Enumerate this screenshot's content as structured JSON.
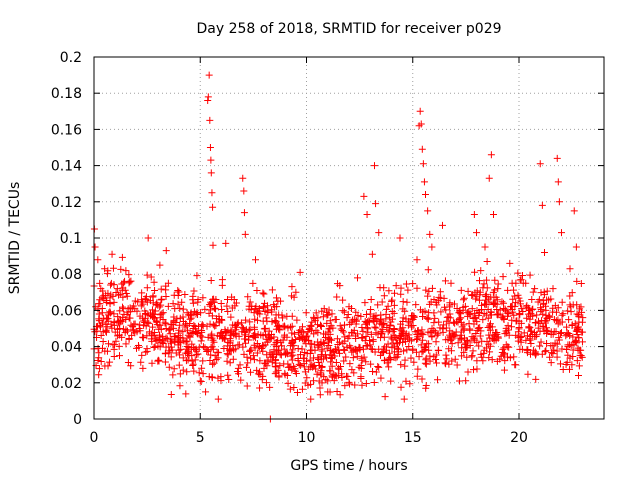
{
  "chart_data": {
    "type": "scatter",
    "title": "Day 258 of 2018, SRMTID for receiver p029",
    "xlabel": "GPS time / hours",
    "ylabel": "SRMTID / TECUs",
    "xlim": [
      0,
      24
    ],
    "ylim": [
      0,
      0.2
    ],
    "x_ticks": [
      0,
      5,
      10,
      15,
      20
    ],
    "x_tick_labels": [
      "0",
      "5",
      "10",
      "15",
      "20"
    ],
    "y_ticks": [
      0,
      0.02,
      0.04,
      0.06,
      0.08,
      0.1,
      0.12,
      0.14,
      0.16,
      0.18,
      0.2
    ],
    "y_tick_labels": [
      "0",
      "0.02",
      "0.04",
      "0.06",
      "0.08",
      "0.1",
      "0.12",
      "0.14",
      "0.16",
      "0.18",
      "0.2"
    ],
    "grid": true,
    "marker": "+",
    "color": "#ff0000",
    "data_x_end": 23.0,
    "series": [
      {
        "name": "SRMTID",
        "points": [
          [
            0.02,
            0.105
          ],
          [
            0.05,
            0.095
          ],
          [
            0.08,
            0.062
          ],
          [
            0.12,
            0.045
          ],
          [
            0.18,
            0.088
          ],
          [
            0.25,
            0.058
          ],
          [
            0.32,
            0.072
          ],
          [
            0.4,
            0.039
          ],
          [
            0.5,
            0.083
          ],
          [
            0.62,
            0.051
          ],
          [
            0.75,
            0.064
          ],
          [
            0.85,
            0.091
          ],
          [
            1.0,
            0.048
          ],
          [
            1.1,
            0.072
          ],
          [
            1.2,
            0.035
          ],
          [
            1.35,
            0.056
          ],
          [
            1.5,
            0.082
          ],
          [
            1.65,
            0.044
          ],
          [
            1.8,
            0.061
          ],
          [
            2.0,
            0.039
          ],
          [
            2.15,
            0.052
          ],
          [
            2.3,
            0.028
          ],
          [
            2.45,
            0.066
          ],
          [
            2.55,
            0.1
          ],
          [
            2.7,
            0.047
          ],
          [
            2.85,
            0.071
          ],
          [
            3.0,
            0.032
          ],
          [
            3.1,
            0.085
          ],
          [
            3.25,
            0.055
          ],
          [
            3.4,
            0.093
          ],
          [
            3.5,
            0.075
          ],
          [
            3.6,
            0.043
          ],
          [
            3.8,
            0.061
          ],
          [
            4.0,
            0.038
          ],
          [
            4.2,
            0.027
          ],
          [
            4.4,
            0.049
          ],
          [
            4.6,
            0.035
          ],
          [
            4.8,
            0.058
          ],
          [
            5.0,
            0.021
          ],
          [
            5.15,
            0.04
          ],
          [
            5.25,
            0.015
          ],
          [
            5.35,
            0.176
          ],
          [
            5.38,
            0.178
          ],
          [
            5.42,
            0.19
          ],
          [
            5.45,
            0.165
          ],
          [
            5.48,
            0.15
          ],
          [
            5.5,
            0.143
          ],
          [
            5.52,
            0.136
          ],
          [
            5.55,
            0.125
          ],
          [
            5.58,
            0.117
          ],
          [
            5.6,
            0.096
          ],
          [
            5.7,
            0.035
          ],
          [
            5.85,
            0.011
          ],
          [
            6.0,
            0.055
          ],
          [
            6.2,
            0.097
          ],
          [
            6.4,
            0.042
          ],
          [
            6.6,
            0.066
          ],
          [
            6.8,
            0.025
          ],
          [
            7.0,
            0.133
          ],
          [
            7.05,
            0.126
          ],
          [
            7.08,
            0.114
          ],
          [
            7.12,
            0.102
          ],
          [
            7.3,
            0.049
          ],
          [
            7.5,
            0.035
          ],
          [
            7.6,
            0.088
          ],
          [
            7.8,
            0.058
          ],
          [
            8.0,
            0.028
          ],
          [
            8.2,
            0.046
          ],
          [
            8.3,
            0.0
          ],
          [
            8.5,
            0.062
          ],
          [
            8.7,
            0.038
          ],
          [
            8.9,
            0.051
          ],
          [
            9.1,
            0.024
          ],
          [
            9.3,
            0.042
          ],
          [
            9.5,
            0.07
          ],
          [
            9.7,
            0.081
          ],
          [
            9.8,
            0.045
          ],
          [
            10.0,
            0.032
          ],
          [
            10.2,
            0.011
          ],
          [
            10.4,
            0.038
          ],
          [
            10.6,
            0.021
          ],
          [
            10.8,
            0.047
          ],
          [
            11.0,
            0.015
          ],
          [
            11.2,
            0.035
          ],
          [
            11.4,
            0.055
          ],
          [
            11.6,
            0.029
          ],
          [
            11.8,
            0.043
          ],
          [
            12.0,
            0.062
          ],
          [
            12.2,
            0.038
          ],
          [
            12.4,
            0.078
          ],
          [
            12.6,
            0.045
          ],
          [
            12.7,
            0.123
          ],
          [
            12.85,
            0.113
          ],
          [
            13.0,
            0.058
          ],
          [
            13.1,
            0.091
          ],
          [
            13.2,
            0.14
          ],
          [
            13.25,
            0.119
          ],
          [
            13.4,
            0.103
          ],
          [
            13.6,
            0.052
          ],
          [
            13.8,
            0.031
          ],
          [
            14.0,
            0.065
          ],
          [
            14.2,
            0.045
          ],
          [
            14.4,
            0.1
          ],
          [
            14.6,
            0.011
          ],
          [
            14.8,
            0.054
          ],
          [
            15.0,
            0.038
          ],
          [
            15.2,
            0.088
          ],
          [
            15.3,
            0.162
          ],
          [
            15.35,
            0.17
          ],
          [
            15.4,
            0.163
          ],
          [
            15.45,
            0.149
          ],
          [
            15.5,
            0.141
          ],
          [
            15.55,
            0.131
          ],
          [
            15.6,
            0.124
          ],
          [
            15.7,
            0.115
          ],
          [
            15.8,
            0.102
          ],
          [
            15.9,
            0.095
          ],
          [
            16.0,
            0.066
          ],
          [
            16.2,
            0.038
          ],
          [
            16.4,
            0.107
          ],
          [
            16.6,
            0.054
          ],
          [
            16.8,
            0.075
          ],
          [
            17.0,
            0.033
          ],
          [
            17.2,
            0.021
          ],
          [
            17.4,
            0.049
          ],
          [
            17.6,
            0.026
          ],
          [
            17.8,
            0.061
          ],
          [
            17.9,
            0.113
          ],
          [
            18.0,
            0.103
          ],
          [
            18.2,
            0.082
          ],
          [
            18.4,
            0.095
          ],
          [
            18.5,
            0.087
          ],
          [
            18.6,
            0.133
          ],
          [
            18.7,
            0.146
          ],
          [
            18.8,
            0.113
          ],
          [
            19.0,
            0.072
          ],
          [
            19.2,
            0.056
          ],
          [
            19.4,
            0.041
          ],
          [
            19.6,
            0.062
          ],
          [
            19.8,
            0.03
          ],
          [
            20.0,
            0.054
          ],
          [
            20.2,
            0.075
          ],
          [
            20.4,
            0.046
          ],
          [
            20.6,
            0.066
          ],
          [
            20.8,
            0.036
          ],
          [
            21.0,
            0.141
          ],
          [
            21.1,
            0.118
          ],
          [
            21.2,
            0.092
          ],
          [
            21.4,
            0.057
          ],
          [
            21.6,
            0.072
          ],
          [
            21.8,
            0.144
          ],
          [
            21.85,
            0.131
          ],
          [
            21.9,
            0.12
          ],
          [
            22.0,
            0.103
          ],
          [
            22.2,
            0.046
          ],
          [
            22.4,
            0.083
          ],
          [
            22.6,
            0.115
          ],
          [
            22.7,
            0.095
          ],
          [
            22.8,
            0.024
          ],
          [
            22.9,
            0.038
          ],
          [
            23.0,
            0.056
          ]
        ]
      }
    ]
  }
}
